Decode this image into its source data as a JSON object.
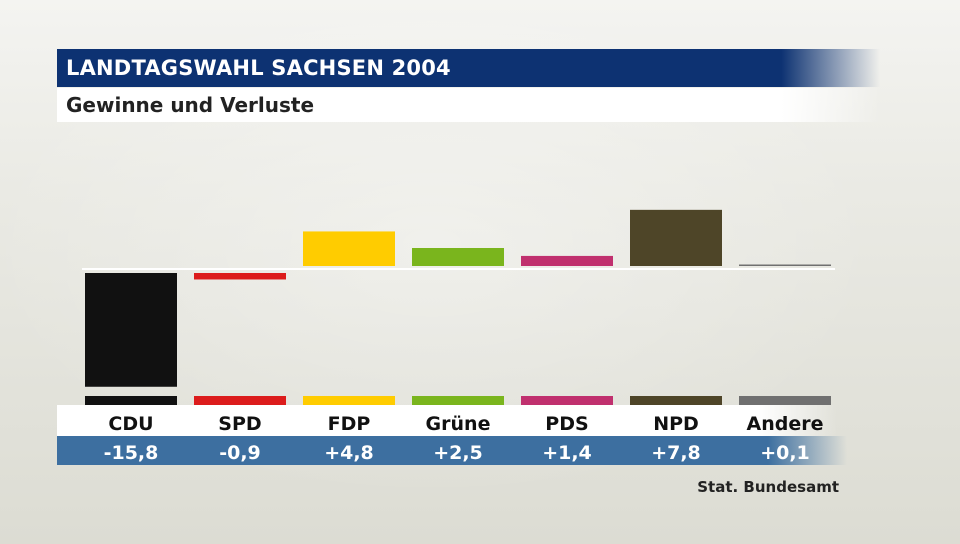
{
  "header": {
    "title": "LANDTAGSWAHL SACHSEN 2004",
    "subtitle": "Gewinne und Verluste"
  },
  "source": "Stat. Bundesamt",
  "chart_data": {
    "type": "bar",
    "title": "LANDTAGSWAHL SACHSEN 2004",
    "subtitle": "Gewinne und Verluste",
    "categories": [
      "CDU",
      "SPD",
      "FDP",
      "Grüne",
      "PDS",
      "NPD",
      "Andere"
    ],
    "values": [
      -15.8,
      -0.9,
      4.8,
      2.5,
      1.4,
      7.8,
      0.1
    ],
    "value_labels": [
      "-15,8",
      "-0,9",
      "+4,8",
      "+2,5",
      "+1,4",
      "+7,8",
      "+0,1"
    ],
    "colors": [
      "#111111",
      "#dc1c1c",
      "#ffcc00",
      "#7ab51d",
      "#c0306e",
      "#4e4528",
      "#707070"
    ],
    "ylim": [
      -16.5,
      8.5
    ],
    "grid": false,
    "legend": "none"
  }
}
